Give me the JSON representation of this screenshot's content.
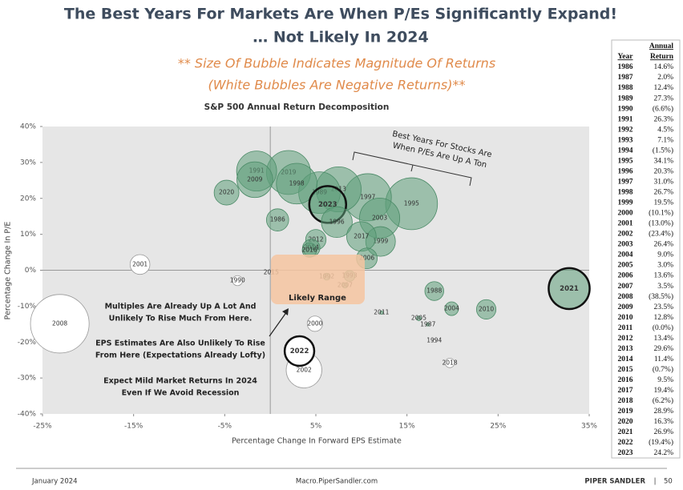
{
  "header": {
    "title_lines": [
      "The Best Years For Markets Are When P/Es Significantly Expand!",
      "… Not Likely In 2024"
    ],
    "subtitle_lines": [
      "** Size Of Bubble Indicates Magnitude Of Returns",
      "(White Bubbles Are Negative Returns)**"
    ]
  },
  "chart_data": {
    "type": "bubble",
    "title": "S&P 500 Annual Return Decomposition",
    "x_label": "Percentage Change In Forward EPS Estimate",
    "y_label": "Percentage Change In P/E",
    "xlim": [
      -25,
      35
    ],
    "ylim": [
      -40,
      40
    ],
    "xticks": [
      {
        "value": -25,
        "label": "-25%"
      },
      {
        "value": -15,
        "label": "-15%"
      },
      {
        "value": -5,
        "label": "-5%"
      },
      {
        "value": 5,
        "label": "5%"
      },
      {
        "value": 15,
        "label": "15%"
      },
      {
        "value": 25,
        "label": "25%"
      },
      {
        "value": 35,
        "label": "35%"
      }
    ],
    "yticks": [
      {
        "value": 40,
        "label": "40%"
      },
      {
        "value": 30,
        "label": "30%"
      },
      {
        "value": 20,
        "label": "20%"
      },
      {
        "value": 10,
        "label": "10%"
      },
      {
        "value": 0,
        "label": "0%"
      },
      {
        "value": -10,
        "label": "-10%"
      },
      {
        "value": -20,
        "label": "-20%"
      },
      {
        "value": -30,
        "label": "-30%"
      },
      {
        "value": -40,
        "label": "-40%"
      }
    ],
    "positive_color": "#5e9e7a",
    "negative_color": "#ffffff",
    "points": [
      {
        "label": "2008",
        "x": -23.1,
        "y": -14.9,
        "size": -38.5
      },
      {
        "label": "2002",
        "x": 3.7,
        "y": -27.8,
        "size": -23.4
      },
      {
        "label": "2022",
        "x": 3.2,
        "y": -22.5,
        "size": -19.4,
        "highlight": true
      },
      {
        "label": "2001",
        "x": -14.3,
        "y": 1.6,
        "size": -13.0
      },
      {
        "label": "2000",
        "x": 4.9,
        "y": -14.9,
        "size": -10.1
      },
      {
        "label": "1990",
        "x": -3.6,
        "y": -2.9,
        "size": -6.6
      },
      {
        "label": "2018",
        "x": 19.7,
        "y": -25.8,
        "size": -6.2
      },
      {
        "label": "1994",
        "x": 18.0,
        "y": -19.6,
        "size": -1.5
      },
      {
        "label": "2015",
        "x": 0.1,
        "y": -0.7,
        "size": -0.7
      },
      {
        "label": "2011",
        "x": 12.2,
        "y": -11.8,
        "size": 0.0
      },
      {
        "label": "1995",
        "x": 15.5,
        "y": 18.5,
        "size": 34.1
      },
      {
        "label": "1997",
        "x": 10.7,
        "y": 20.3,
        "size": 31.0
      },
      {
        "label": "2013",
        "x": 7.5,
        "y": 22.5,
        "size": 29.6
      },
      {
        "label": "2019",
        "x": 2.0,
        "y": 27.2,
        "size": 28.9
      },
      {
        "label": "1989",
        "x": 5.4,
        "y": 21.6,
        "size": 27.3
      },
      {
        "label": "2021",
        "x": 32.8,
        "y": -5.1,
        "size": 26.9,
        "highlight": true
      },
      {
        "label": "1998",
        "x": 2.9,
        "y": 24.1,
        "size": 26.7
      },
      {
        "label": "2003",
        "x": 12.0,
        "y": 14.5,
        "size": 26.4
      },
      {
        "label": "1991",
        "x": -1.5,
        "y": 27.6,
        "size": 26.3
      },
      {
        "label": "2023",
        "x": 6.3,
        "y": 18.3,
        "size": 24.2,
        "highlight": true
      },
      {
        "label": "2009",
        "x": -1.7,
        "y": 25.2,
        "size": 23.5
      },
      {
        "label": "1996",
        "x": 7.3,
        "y": 13.4,
        "size": 20.3
      },
      {
        "label": "1999",
        "x": 12.1,
        "y": 8.0,
        "size": 19.5
      },
      {
        "label": "2017",
        "x": 10.0,
        "y": 9.4,
        "size": 19.4
      },
      {
        "label": "2020",
        "x": -4.8,
        "y": 21.6,
        "size": 16.3
      },
      {
        "label": "1986",
        "x": 0.8,
        "y": 14.0,
        "size": 14.6
      },
      {
        "label": "2006",
        "x": 10.6,
        "y": 3.3,
        "size": 13.6
      },
      {
        "label": "2012",
        "x": 5.0,
        "y": 8.5,
        "size": 13.4
      },
      {
        "label": "2010",
        "x": 23.7,
        "y": -10.9,
        "size": 12.8
      },
      {
        "label": "1988",
        "x": 18.0,
        "y": -5.8,
        "size": 12.4
      },
      {
        "label": "2014",
        "x": 4.5,
        "y": 6.2,
        "size": 11.4
      },
      {
        "label": "2016",
        "x": 4.3,
        "y": 5.6,
        "size": 9.5
      },
      {
        "label": "2004",
        "x": 19.9,
        "y": -10.7,
        "size": 9.0
      },
      {
        "label": "1993",
        "x": 8.7,
        "y": -1.6,
        "size": 7.1
      },
      {
        "label": "1992",
        "x": 6.2,
        "y": -1.8,
        "size": 4.5
      },
      {
        "label": "2007",
        "x": 8.2,
        "y": -4.2,
        "size": 3.5
      },
      {
        "label": "2005",
        "x": 16.3,
        "y": -13.4,
        "size": 3.0
      },
      {
        "label": "1987",
        "x": 17.3,
        "y": -15.1,
        "size": 2.0
      }
    ],
    "annotations": {
      "best_years": [
        "Best Years For Stocks Are",
        "When P/Es Are Up A Ton"
      ],
      "likely_range": "Likely Range",
      "notes": [
        "Multiples Are Already Up A Lot And",
        "Unlikely To Rise Much From Here.",
        "EPS Estimates Are Also Unlikely To Rise",
        "From Here (Expectations Already Lofty)",
        "Expect Mild Market Returns In 2024",
        "Even If We Avoid Recession"
      ]
    }
  },
  "table": {
    "header": [
      "Annual",
      "Year",
      "Return"
    ],
    "rows": [
      [
        "1986",
        "14.6%"
      ],
      [
        "1987",
        "2.0%"
      ],
      [
        "1988",
        "12.4%"
      ],
      [
        "1989",
        "27.3%"
      ],
      [
        "1990",
        "(6.6%)"
      ],
      [
        "1991",
        "26.3%"
      ],
      [
        "1992",
        "4.5%"
      ],
      [
        "1993",
        "7.1%"
      ],
      [
        "1994",
        "(1.5%)"
      ],
      [
        "1995",
        "34.1%"
      ],
      [
        "1996",
        "20.3%"
      ],
      [
        "1997",
        "31.0%"
      ],
      [
        "1998",
        "26.7%"
      ],
      [
        "1999",
        "19.5%"
      ],
      [
        "2000",
        "(10.1%)"
      ],
      [
        "2001",
        "(13.0%)"
      ],
      [
        "2002",
        "(23.4%)"
      ],
      [
        "2003",
        "26.4%"
      ],
      [
        "2004",
        "9.0%"
      ],
      [
        "2005",
        "3.0%"
      ],
      [
        "2006",
        "13.6%"
      ],
      [
        "2007",
        "3.5%"
      ],
      [
        "2008",
        "(38.5%)"
      ],
      [
        "2009",
        "23.5%"
      ],
      [
        "2010",
        "12.8%"
      ],
      [
        "2011",
        "(0.0%)"
      ],
      [
        "2012",
        "13.4%"
      ],
      [
        "2013",
        "29.6%"
      ],
      [
        "2014",
        "11.4%"
      ],
      [
        "2015",
        "(0.7%)"
      ],
      [
        "2016",
        "9.5%"
      ],
      [
        "2017",
        "19.4%"
      ],
      [
        "2018",
        "(6.2%)"
      ],
      [
        "2019",
        "28.9%"
      ],
      [
        "2020",
        "16.3%"
      ],
      [
        "2021",
        "26.9%"
      ],
      [
        "2022",
        "(19.4%)"
      ],
      [
        "2023",
        "24.2%"
      ]
    ]
  },
  "footer": {
    "date": "January 2024",
    "site": "Macro.PiperSandler.com",
    "brand": "PIPER SANDLER",
    "separator": "|",
    "page": "50"
  }
}
